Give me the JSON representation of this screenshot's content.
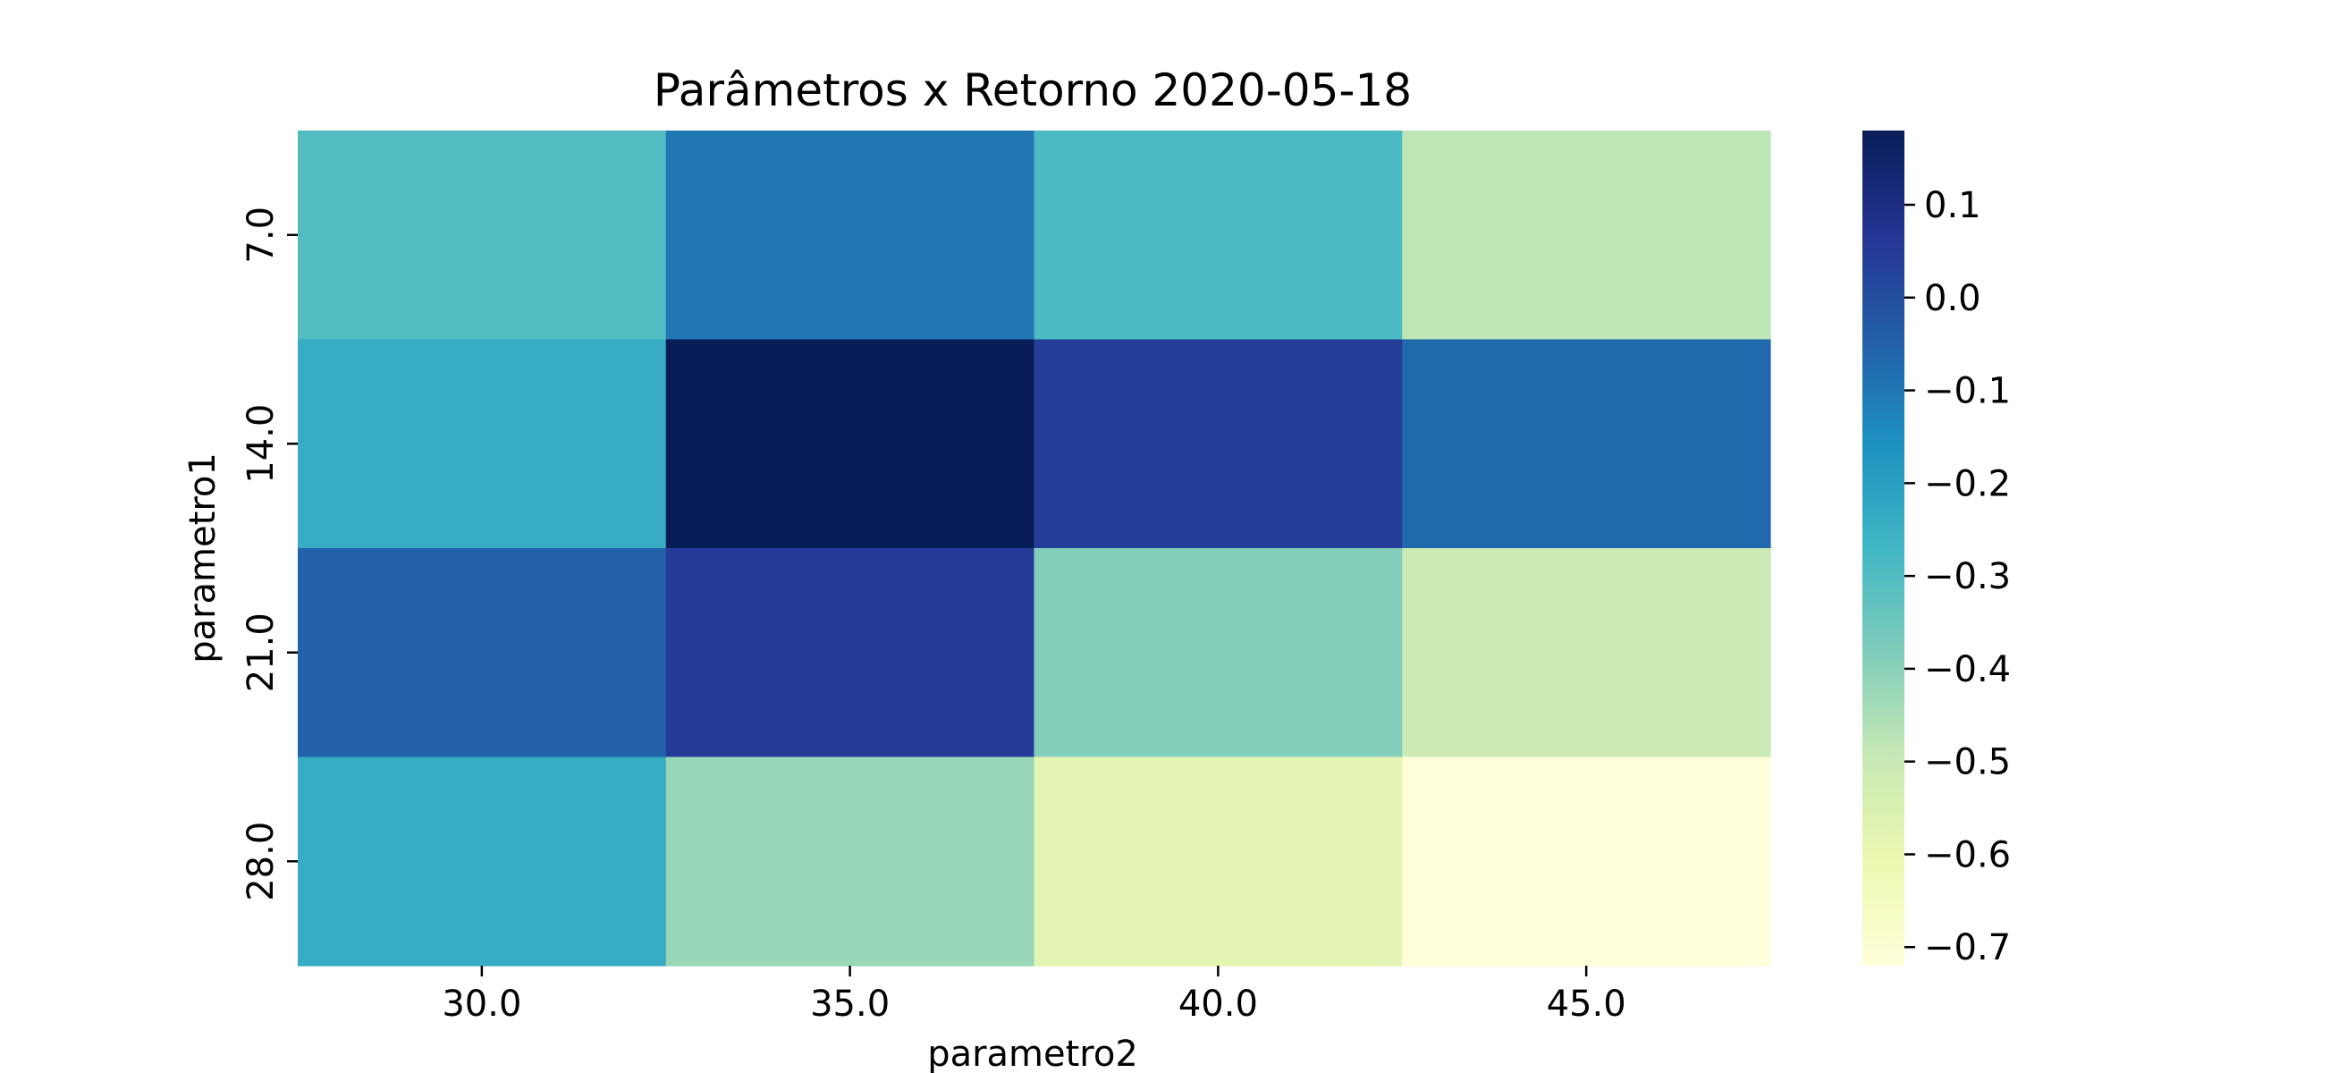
{
  "chart_data": {
    "type": "heatmap",
    "title": "Parâmetros x Retorno 2020-05-18",
    "xlabel": "parametro2",
    "ylabel": "parametro1",
    "x_categories": [
      "30.0",
      "35.0",
      "40.0",
      "45.0"
    ],
    "y_categories": [
      "7.0",
      "14.0",
      "21.0",
      "28.0"
    ],
    "values": [
      [
        -0.3,
        -0.1,
        -0.29,
        -0.48
      ],
      [
        -0.24,
        0.18,
        0.04,
        -0.07
      ],
      [
        -0.05,
        0.05,
        -0.39,
        -0.51
      ],
      [
        -0.24,
        -0.42,
        -0.58,
        -0.72
      ]
    ],
    "colorbar": {
      "min": -0.72,
      "max": 0.18,
      "ticks": [
        0.1,
        0.0,
        -0.1,
        -0.2,
        -0.3,
        -0.4,
        -0.5,
        -0.6,
        -0.7
      ],
      "tick_labels": [
        "0.1",
        "0.0",
        "−0.1",
        "−0.2",
        "−0.3",
        "−0.4",
        "−0.5",
        "−0.6",
        "−0.7"
      ]
    },
    "colormap": "YlGnBu",
    "colormap_stops": [
      "#ffffd9",
      "#edf8b1",
      "#c7e9b4",
      "#7fcdbb",
      "#41b6c4",
      "#1d91c0",
      "#225ea8",
      "#253494",
      "#081d58"
    ]
  }
}
